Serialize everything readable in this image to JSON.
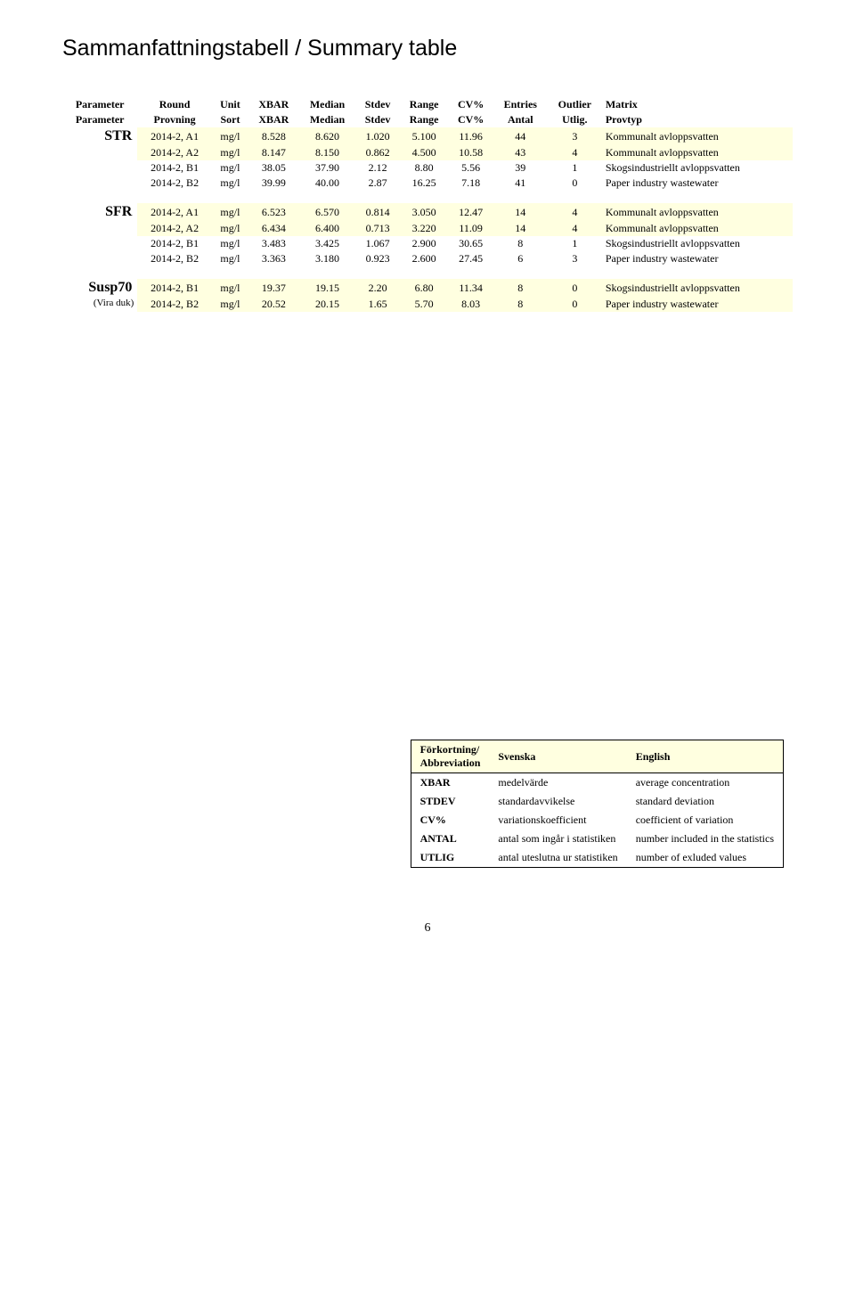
{
  "title": "Sammanfattningstabell / Summary table",
  "header": {
    "r1": [
      "Parameter",
      "Round",
      "Unit",
      "XBAR",
      "Median",
      "Stdev",
      "Range",
      "CV%",
      "Entries",
      "Outlier",
      "Matrix"
    ],
    "r2": [
      "Parameter",
      "Provning",
      "Sort",
      "XBAR",
      "Median",
      "Stdev",
      "Range",
      "CV%",
      "Antal",
      "Utlig.",
      "Provtyp"
    ]
  },
  "groups": [
    {
      "param": "STR",
      "rows": [
        {
          "bg": true,
          "round": "2014-2, A1",
          "unit": "mg/l",
          "xbar": "8.528",
          "median": "8.620",
          "stdev": "1.020",
          "range": "5.100",
          "cv": "11.96",
          "entries": "44",
          "outlier": "3",
          "matrix": "Kommunalt avloppsvatten"
        },
        {
          "bg": true,
          "round": "2014-2, A2",
          "unit": "mg/l",
          "xbar": "8.147",
          "median": "8.150",
          "stdev": "0.862",
          "range": "4.500",
          "cv": "10.58",
          "entries": "43",
          "outlier": "4",
          "matrix": "Kommunalt avloppsvatten"
        },
        {
          "bg": false,
          "round": "2014-2, B1",
          "unit": "mg/l",
          "xbar": "38.05",
          "median": "37.90",
          "stdev": "2.12",
          "range": "8.80",
          "cv": "5.56",
          "entries": "39",
          "outlier": "1",
          "matrix": "Skogsindustriellt avloppsvatten"
        },
        {
          "bg": false,
          "round": "2014-2, B2",
          "unit": "mg/l",
          "xbar": "39.99",
          "median": "40.00",
          "stdev": "2.87",
          "range": "16.25",
          "cv": "7.18",
          "entries": "41",
          "outlier": "0",
          "matrix": "Paper industry wastewater"
        }
      ]
    },
    {
      "param": "SFR",
      "rows": [
        {
          "bg": true,
          "round": "2014-2, A1",
          "unit": "mg/l",
          "xbar": "6.523",
          "median": "6.570",
          "stdev": "0.814",
          "range": "3.050",
          "cv": "12.47",
          "entries": "14",
          "outlier": "4",
          "matrix": "Kommunalt avloppsvatten"
        },
        {
          "bg": true,
          "round": "2014-2, A2",
          "unit": "mg/l",
          "xbar": "6.434",
          "median": "6.400",
          "stdev": "0.713",
          "range": "3.220",
          "cv": "11.09",
          "entries": "14",
          "outlier": "4",
          "matrix": "Kommunalt avloppsvatten"
        },
        {
          "bg": false,
          "round": "2014-2, B1",
          "unit": "mg/l",
          "xbar": "3.483",
          "median": "3.425",
          "stdev": "1.067",
          "range": "2.900",
          "cv": "30.65",
          "entries": "8",
          "outlier": "1",
          "matrix": "Skogsindustriellt avloppsvatten"
        },
        {
          "bg": false,
          "round": "2014-2, B2",
          "unit": "mg/l",
          "xbar": "3.363",
          "median": "3.180",
          "stdev": "0.923",
          "range": "2.600",
          "cv": "27.45",
          "entries": "6",
          "outlier": "3",
          "matrix": "Paper industry wastewater"
        }
      ]
    },
    {
      "param": "Susp70",
      "paramSub": "(Vira duk)",
      "rows": [
        {
          "bg": true,
          "round": "2014-2, B1",
          "unit": "mg/l",
          "xbar": "19.37",
          "median": "19.15",
          "stdev": "2.20",
          "range": "6.80",
          "cv": "11.34",
          "entries": "8",
          "outlier": "0",
          "matrix": "Skogsindustriellt avloppsvatten"
        },
        {
          "bg": true,
          "round": "2014-2, B2",
          "unit": "mg/l",
          "xbar": "20.52",
          "median": "20.15",
          "stdev": "1.65",
          "range": "5.70",
          "cv": "8.03",
          "entries": "8",
          "outlier": "0",
          "matrix": "Paper industry wastewater"
        }
      ]
    }
  ],
  "legend": {
    "hdr": {
      "abbr_sv": "Förkortning/",
      "abbr_en": "Abbreviation",
      "sv": "Svenska",
      "en": "English"
    },
    "rows": [
      {
        "a": "XBAR",
        "sv": "medelvärde",
        "en": "average concentration"
      },
      {
        "a": "STDEV",
        "sv": "standardavvikelse",
        "en": "standard deviation"
      },
      {
        "a": "CV%",
        "sv": "variationskoefficient",
        "en": "coefficient of variation"
      },
      {
        "a": "ANTAL",
        "sv": "antal som ingår i statistiken",
        "en": "number included in the statistics"
      },
      {
        "a": "UTLIG",
        "sv": "antal uteslutna ur statistiken",
        "en": "number of exluded values"
      }
    ]
  },
  "page_number": "6"
}
